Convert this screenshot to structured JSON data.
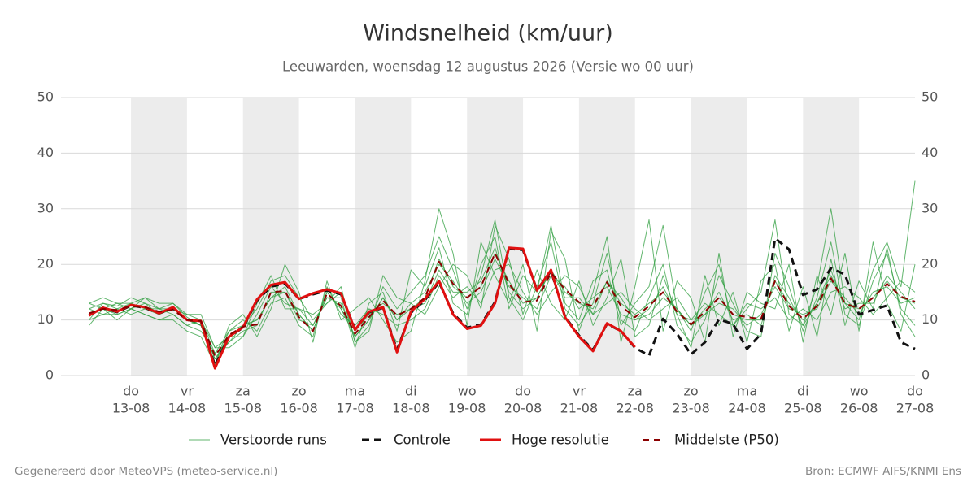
{
  "chart_data": {
    "type": "line",
    "title": "Windsnelheid (km/uur)",
    "subtitle": "Leeuwarden, woensdag 12 augustus 2026 (Versie wo 00 uur)",
    "footer_left": "Gegenereerd door MeteoVPS (meteo-service.nl)",
    "footer_right": "Bron: ECMWF AIFS/KNMI Ens",
    "grid": true,
    "alternate_day_shading": true,
    "legend": "bottom",
    "xlim": [
      11.75,
      27
    ],
    "ylim": [
      0,
      50
    ],
    "yticks": [
      0,
      10,
      20,
      30,
      40,
      50
    ],
    "xticks": [
      {
        "value": 13,
        "label": "13-08",
        "day": "do"
      },
      {
        "value": 14,
        "label": "14-08",
        "day": "vr"
      },
      {
        "value": 15,
        "label": "15-08",
        "day": "za"
      },
      {
        "value": 16,
        "label": "16-08",
        "day": "zo"
      },
      {
        "value": 17,
        "label": "17-08",
        "day": "ma"
      },
      {
        "value": 18,
        "label": "18-08",
        "day": "di"
      },
      {
        "value": 19,
        "label": "19-08",
        "day": "wo"
      },
      {
        "value": 20,
        "label": "20-08",
        "day": "do"
      },
      {
        "value": 21,
        "label": "21-08",
        "day": "vr"
      },
      {
        "value": 22,
        "label": "22-08",
        "day": "za"
      },
      {
        "value": 23,
        "label": "23-08",
        "day": "zo"
      },
      {
        "value": 24,
        "label": "24-08",
        "day": "ma"
      },
      {
        "value": 25,
        "label": "25-08",
        "day": "di"
      },
      {
        "value": 26,
        "label": "26-08",
        "day": "wo"
      },
      {
        "value": 27,
        "label": "27-08",
        "day": "do"
      }
    ],
    "x": [
      12.25,
      12.5,
      12.75,
      13,
      13.25,
      13.5,
      13.75,
      14,
      14.25,
      14.5,
      14.75,
      15,
      15.25,
      15.5,
      15.75,
      16,
      16.25,
      16.5,
      16.75,
      17,
      17.25,
      17.5,
      17.75,
      18,
      18.25,
      18.5,
      18.75,
      19,
      19.25,
      19.5,
      19.75,
      20,
      20.25,
      20.5,
      20.75,
      21,
      21.25,
      21.5,
      21.75,
      22,
      22.25,
      22.5,
      22.75,
      23,
      23.25,
      23.5,
      23.75,
      24,
      24.25,
      24.5,
      24.75,
      25,
      25.25,
      25.5,
      25.75,
      26,
      26.25,
      26.5,
      26.75,
      27
    ],
    "series": [
      {
        "name": "Verstoorde runs",
        "color": "#2e9e3e",
        "style": "thin",
        "runs": [
          [
            12,
            13,
            12.5,
            14,
            13,
            12,
            13,
            10.5,
            9,
            3,
            6,
            9,
            12,
            17,
            18,
            14,
            10,
            13,
            15,
            6,
            9,
            16,
            12,
            15,
            18,
            25,
            19,
            12,
            18,
            28,
            14,
            10,
            16,
            24,
            12,
            9,
            13,
            22,
            10,
            8,
            14,
            20,
            9,
            6,
            10,
            18,
            13,
            8,
            7,
            22,
            16,
            8,
            14,
            24,
            11,
            9,
            17,
            22,
            12,
            9
          ],
          [
            10,
            11,
            11,
            12,
            11,
            10,
            11,
            9,
            8,
            4,
            8,
            10,
            8,
            13,
            14,
            9,
            7,
            16,
            11,
            9,
            12,
            11,
            9,
            10,
            12,
            18,
            14,
            16,
            13,
            19,
            20,
            15,
            11,
            15,
            18,
            16,
            11,
            13,
            15,
            12,
            10,
            12,
            14,
            10,
            13,
            11,
            9,
            13,
            12,
            14,
            10,
            12,
            10,
            15,
            16,
            14,
            11,
            14,
            17,
            15
          ],
          [
            13,
            12,
            13,
            13,
            14,
            12,
            12,
            11,
            10,
            5,
            7,
            7,
            11,
            16,
            13,
            12,
            9,
            14,
            14,
            5,
            13,
            15,
            8,
            19,
            16,
            23,
            13,
            11,
            20,
            25,
            12,
            18,
            15,
            27,
            13,
            10,
            17,
            19,
            9,
            13,
            16,
            27,
            12,
            8,
            15,
            20,
            9,
            12,
            15,
            28,
            11,
            9,
            16,
            30,
            13,
            10,
            19,
            24,
            16,
            35
          ],
          [
            11,
            12,
            11,
            12,
            13,
            11,
            12,
            10,
            9,
            2,
            8,
            9,
            10,
            14,
            16,
            11,
            8,
            15,
            12,
            8,
            11,
            13,
            11,
            12,
            14,
            21,
            16,
            14,
            16,
            22,
            17,
            13,
            14,
            19,
            15,
            13,
            12,
            17,
            13,
            11,
            13,
            15,
            12,
            9,
            12,
            14,
            11,
            10,
            10,
            17,
            13,
            10,
            13,
            18,
            13,
            12,
            14,
            17,
            14,
            13
          ],
          [
            10,
            13,
            12,
            11,
            12,
            12,
            11,
            9,
            10,
            4,
            6,
            8,
            9,
            15,
            15,
            10,
            9,
            14,
            13,
            7,
            10,
            14,
            10,
            13,
            15,
            20,
            17,
            13,
            15,
            21,
            16,
            14,
            12,
            18,
            16,
            12,
            14,
            16,
            11,
            10,
            12,
            16,
            11,
            10,
            11,
            13,
            12,
            9,
            11,
            16,
            12,
            11,
            12,
            17,
            14,
            11,
            15,
            16,
            13,
            14
          ],
          [
            12,
            11,
            12,
            13,
            12,
            11,
            12,
            10,
            9,
            3,
            7,
            9,
            10,
            14,
            15,
            11,
            8,
            15,
            12,
            7,
            10,
            14,
            10,
            12,
            13,
            19,
            15,
            15,
            17,
            23,
            15,
            12,
            14,
            19,
            14,
            14,
            11,
            17,
            14,
            10,
            11,
            14,
            12,
            9,
            11,
            15,
            10,
            11,
            9,
            18,
            14,
            9,
            13,
            19,
            12,
            13,
            13,
            18,
            15,
            12
          ],
          [
            9,
            12,
            10,
            12,
            11,
            10,
            10,
            8,
            7,
            2,
            9,
            11,
            7,
            12,
            20,
            15,
            6,
            17,
            10,
            12,
            14,
            10,
            6,
            8,
            17,
            30,
            22,
            9,
            24,
            18,
            13,
            20,
            8,
            26,
            21,
            8,
            15,
            25,
            6,
            16,
            28,
            8,
            17,
            14,
            6,
            22,
            7,
            15,
            13,
            12,
            20,
            6,
            18,
            11,
            22,
            8,
            24,
            13,
            8,
            20
          ],
          [
            13,
            14,
            13,
            12,
            14,
            13,
            13,
            11,
            11,
            5,
            5,
            7,
            13,
            18,
            12,
            12,
            11,
            13,
            16,
            6,
            8,
            18,
            14,
            13,
            11,
            16,
            20,
            18,
            12,
            27,
            21,
            11,
            19,
            13,
            10,
            17,
            9,
            14,
            21,
            7,
            9,
            18,
            11,
            5,
            18,
            9,
            15,
            6,
            17,
            20,
            8,
            16,
            7,
            21,
            9,
            17,
            12,
            23,
            11,
            7
          ]
        ]
      },
      {
        "name": "Controle",
        "color": "#111111",
        "style": "dashed",
        "values": [
          10.8,
          12.2,
          11.4,
          12.6,
          12.2,
          11.2,
          12.1,
          10,
          9.7,
          1.8,
          7,
          8.6,
          13.5,
          16,
          16.6,
          13.8,
          14.6,
          15.3,
          14.6,
          8.4,
          11.4,
          12.2,
          4.6,
          11.3,
          13.6,
          16.8,
          11.2,
          8.6,
          9.2,
          13.2,
          22.8,
          22.6,
          15.4,
          18.8,
          10.6,
          7.2,
          4.6,
          9.3,
          8,
          5,
          3.6,
          10.2,
          7.5,
          3.8,
          6,
          10.1,
          9.3,
          4.8,
          7.5,
          24.7,
          22.7,
          14.5,
          15.5,
          19.3,
          18.2,
          11,
          11.8,
          12.6,
          6,
          4.8
        ]
      },
      {
        "name": "Hoge resolutie",
        "color": "#e01010",
        "style": "thick",
        "values": [
          10.8,
          12.2,
          11.5,
          12.7,
          12.3,
          11.2,
          12.3,
          10,
          9.8,
          1.3,
          7,
          8.7,
          13.7,
          16.3,
          16.8,
          13.8,
          14.8,
          15.5,
          14.8,
          8.2,
          11.5,
          12.3,
          4.2,
          11.5,
          13.8,
          17,
          11,
          8.4,
          9,
          13,
          23,
          22.8,
          15.3,
          19,
          10.5,
          7,
          4.4,
          9.4,
          8,
          5.1,
          null,
          null,
          null,
          null,
          null,
          null,
          null,
          null,
          null,
          null,
          null,
          null,
          null,
          null,
          null,
          null,
          null,
          null,
          null,
          null
        ]
      },
      {
        "name": "Middelste (P50)",
        "color": "#8b0000",
        "style": "dashed-thin",
        "values": [
          11.2,
          12,
          11.8,
          12.5,
          12.3,
          11.5,
          11.8,
          10,
          9.8,
          3.5,
          7.3,
          8.8,
          9.2,
          15,
          15.2,
          10.5,
          8,
          14.8,
          12.5,
          7.5,
          10.5,
          13.5,
          10.8,
          12,
          14,
          20.5,
          16.5,
          14,
          16,
          22,
          16.5,
          13.2,
          13.5,
          18.5,
          15.5,
          13.2,
          12.5,
          16.8,
          12.5,
          10.5,
          12.5,
          15,
          11.5,
          9.2,
          11.5,
          14,
          11,
          10.5,
          10.2,
          17,
          12.5,
          10.2,
          12.5,
          17.5,
          13,
          12,
          14,
          16.5,
          14.2,
          13.3
        ]
      }
    ]
  }
}
